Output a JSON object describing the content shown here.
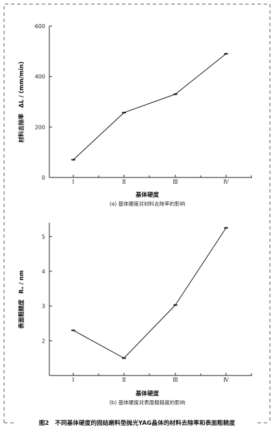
{
  "figure": {
    "caption": "图2　不同基体硬度的固结磨料垫抛光YAG晶体的材料去除率和表面粗糙度"
  },
  "chart_data": [
    {
      "type": "line",
      "categories": [
        "Ⅰ",
        "Ⅱ",
        "Ⅲ",
        "Ⅳ"
      ],
      "series": [
        {
          "values": [
            70,
            257,
            330,
            490
          ]
        }
      ],
      "xlabel": "基体硬度",
      "ylabel": "材料去除率　ΔL / (mm/min)",
      "subtitle": "(a) 基体硬度对材料去除率的影响",
      "ylim": [
        0,
        600
      ],
      "yticks": [
        0,
        200,
        400,
        600
      ],
      "grid": false,
      "error_bars": true
    },
    {
      "type": "line",
      "categories": [
        "Ⅰ",
        "Ⅱ",
        "Ⅲ",
        "Ⅳ"
      ],
      "series": [
        {
          "values": [
            2.3,
            1.5,
            3.03,
            5.25
          ]
        }
      ],
      "xlabel": "基体硬度",
      "ylabel": "表面粗糙度　Rₐ / nm",
      "subtitle": "(b) 基体硬度对表面粗糙度的影响",
      "ylim": [
        1.0,
        5.4
      ],
      "yticks": [
        2,
        3,
        4,
        5
      ],
      "grid": false,
      "error_bars": true
    }
  ]
}
